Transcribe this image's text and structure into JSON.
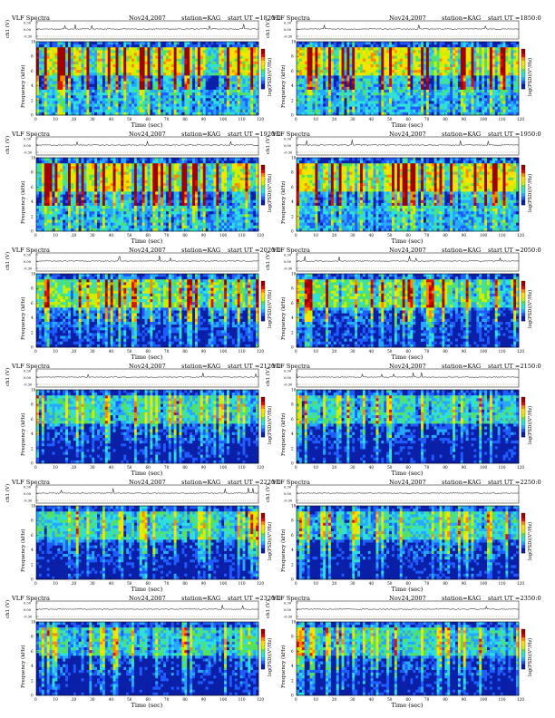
{
  "common": {
    "title": "VLF Spectra",
    "station": "station=KAG",
    "date": "Nov24,2007",
    "start_prefix": "start  UT =",
    "ylabel_top": "ch1 (V)",
    "ylabel_spec": "Frequency (kHz)",
    "colorbar_label": "log(PSD)(V²/Hz)",
    "xlabel": "Time (sec)",
    "x_ticks": [
      "0",
      "10",
      "20",
      "30",
      "40",
      "50",
      "60",
      "70",
      "80",
      "90",
      "100",
      "110",
      "120"
    ],
    "y_ticks_spec": [
      "0",
      "2",
      "4",
      "6",
      "8",
      "10"
    ],
    "y_ticks_top": [
      "0.30",
      "0.00",
      "-0.30"
    ]
  },
  "chart_data": [
    {
      "type": "heatmap",
      "start_ut": "1820:0",
      "activity": "high",
      "xlim": [
        0,
        120
      ],
      "ylim": [
        0,
        10
      ]
    },
    {
      "type": "heatmap",
      "start_ut": "1850:0",
      "activity": "high",
      "xlim": [
        0,
        120
      ],
      "ylim": [
        0,
        10
      ]
    },
    {
      "type": "heatmap",
      "start_ut": "1920:0",
      "activity": "high",
      "xlim": [
        0,
        120
      ],
      "ylim": [
        0,
        10
      ]
    },
    {
      "type": "heatmap",
      "start_ut": "1950:0",
      "activity": "high",
      "xlim": [
        0,
        120
      ],
      "ylim": [
        0,
        10
      ]
    },
    {
      "type": "heatmap",
      "start_ut": "2020:0",
      "activity": "medium",
      "xlim": [
        0,
        120
      ],
      "ylim": [
        0,
        10
      ]
    },
    {
      "type": "heatmap",
      "start_ut": "2050:0",
      "activity": "medium",
      "xlim": [
        0,
        120
      ],
      "ylim": [
        0,
        10
      ]
    },
    {
      "type": "heatmap",
      "start_ut": "2120:0",
      "activity": "low",
      "xlim": [
        0,
        120
      ],
      "ylim": [
        0,
        10
      ]
    },
    {
      "type": "heatmap",
      "start_ut": "2150:0",
      "activity": "low",
      "xlim": [
        0,
        120
      ],
      "ylim": [
        0,
        10
      ]
    },
    {
      "type": "heatmap",
      "start_ut": "2220:0",
      "activity": "low",
      "xlim": [
        0,
        120
      ],
      "ylim": [
        0,
        10
      ]
    },
    {
      "type": "heatmap",
      "start_ut": "2250:0",
      "activity": "low",
      "xlim": [
        0,
        120
      ],
      "ylim": [
        0,
        10
      ]
    },
    {
      "type": "heatmap",
      "start_ut": "2320:0",
      "activity": "low",
      "xlim": [
        0,
        120
      ],
      "ylim": [
        0,
        10
      ]
    },
    {
      "type": "heatmap",
      "start_ut": "2350:0",
      "activity": "low",
      "xlim": [
        0,
        120
      ],
      "ylim": [
        0,
        10
      ]
    }
  ],
  "colors": {
    "colormap": [
      "#0a1fa8",
      "#1f5cff",
      "#27a8ff",
      "#2fe0d8",
      "#55e060",
      "#c8f000",
      "#ffe100",
      "#ff8a00",
      "#e01000",
      "#a00000"
    ]
  }
}
